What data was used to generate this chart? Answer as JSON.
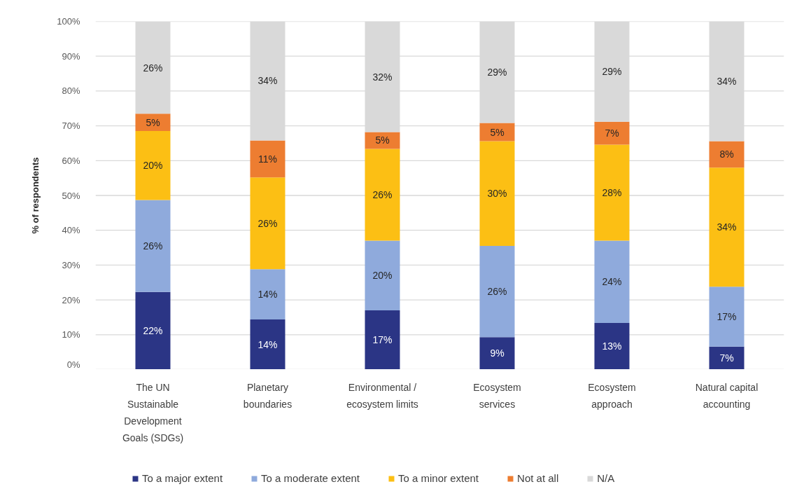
{
  "chart_data": {
    "type": "bar",
    "stacked": true,
    "ylabel": "% of respondents",
    "categories": [
      "The UN Sustainable Development Goals (SDGs)",
      "Planetary boundaries",
      "Environmental / ecosystem limits",
      "Ecosystem services",
      "Ecosystem approach",
      "Natural capital accounting"
    ],
    "series": [
      {
        "name": "To a major extent",
        "color": "#2b3585",
        "values": [
          22.3,
          14.4,
          17.0,
          9.3,
          13.4,
          6.6
        ],
        "value_labels": [
          "22%",
          "14%",
          "17%",
          "9%",
          "13%",
          "7%"
        ]
      },
      {
        "name": "To a moderate extent",
        "color": "#8faadc",
        "values": [
          26.4,
          14.4,
          20.0,
          26.2,
          23.6,
          17.2
        ],
        "value_labels": [
          "26%",
          "14%",
          "20%",
          "26%",
          "24%",
          "17%"
        ]
      },
      {
        "name": "To a minor extent",
        "color": "#fcbf14",
        "values": [
          19.8,
          26.4,
          26.4,
          30.1,
          27.6,
          34.2
        ],
        "value_labels": [
          "20%",
          "26%",
          "26%",
          "30%",
          "28%",
          "34%"
        ]
      },
      {
        "name": "Not at all",
        "color": "#ed7d31",
        "values": [
          5.0,
          10.6,
          4.8,
          5.2,
          6.6,
          7.6
        ],
        "value_labels": [
          "5%",
          "11%",
          "5%",
          "5%",
          "7%",
          "8%"
        ]
      },
      {
        "name": "N/A",
        "color": "#d9d9d9",
        "values": [
          26.4,
          34.2,
          31.8,
          29.2,
          28.8,
          34.4
        ],
        "value_labels": [
          "26%",
          "34%",
          "32%",
          "29%",
          "29%",
          "34%"
        ]
      }
    ],
    "ylim": [
      0,
      100
    ],
    "yticks": [
      {
        "value": 0,
        "label": "0%"
      },
      {
        "value": 10,
        "label": "10%"
      },
      {
        "value": 20,
        "label": "20%"
      },
      {
        "value": 30,
        "label": "30%"
      },
      {
        "value": 40,
        "label": "40%"
      },
      {
        "value": 50,
        "label": "50%"
      },
      {
        "value": 60,
        "label": "60%"
      },
      {
        "value": 70,
        "label": "70%"
      },
      {
        "value": 80,
        "label": "80%"
      },
      {
        "value": 90,
        "label": "90%"
      },
      {
        "value": 100,
        "label": "100%"
      }
    ],
    "grid": "y",
    "legend": "bottom"
  }
}
